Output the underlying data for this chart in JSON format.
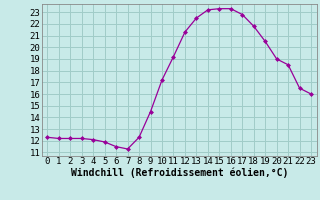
{
  "x": [
    0,
    1,
    2,
    3,
    4,
    5,
    6,
    7,
    8,
    9,
    10,
    11,
    12,
    13,
    14,
    15,
    16,
    17,
    18,
    19,
    20,
    21,
    22,
    23
  ],
  "y": [
    12.3,
    12.2,
    12.2,
    12.2,
    12.1,
    11.9,
    11.5,
    11.3,
    12.3,
    14.5,
    17.2,
    19.2,
    21.3,
    22.5,
    23.2,
    23.3,
    23.3,
    22.8,
    21.8,
    20.5,
    19.0,
    18.5,
    16.5,
    16.0
  ],
  "line_color": "#990099",
  "marker": "D",
  "marker_size": 2.0,
  "bg_color": "#c8eae8",
  "grid_color": "#a0ccc8",
  "xlabel": "Windchill (Refroidissement éolien,°C)",
  "xlim": [
    -0.5,
    23.5
  ],
  "ylim": [
    10.7,
    23.7
  ],
  "yticks": [
    11,
    12,
    13,
    14,
    15,
    16,
    17,
    18,
    19,
    20,
    21,
    22,
    23
  ],
  "xticks": [
    0,
    1,
    2,
    3,
    4,
    5,
    6,
    7,
    8,
    9,
    10,
    11,
    12,
    13,
    14,
    15,
    16,
    17,
    18,
    19,
    20,
    21,
    22,
    23
  ],
  "xlabel_fontsize": 7.0,
  "tick_fontsize": 6.5,
  "axis_bg": "#c8eae8",
  "spine_color": "#888888"
}
